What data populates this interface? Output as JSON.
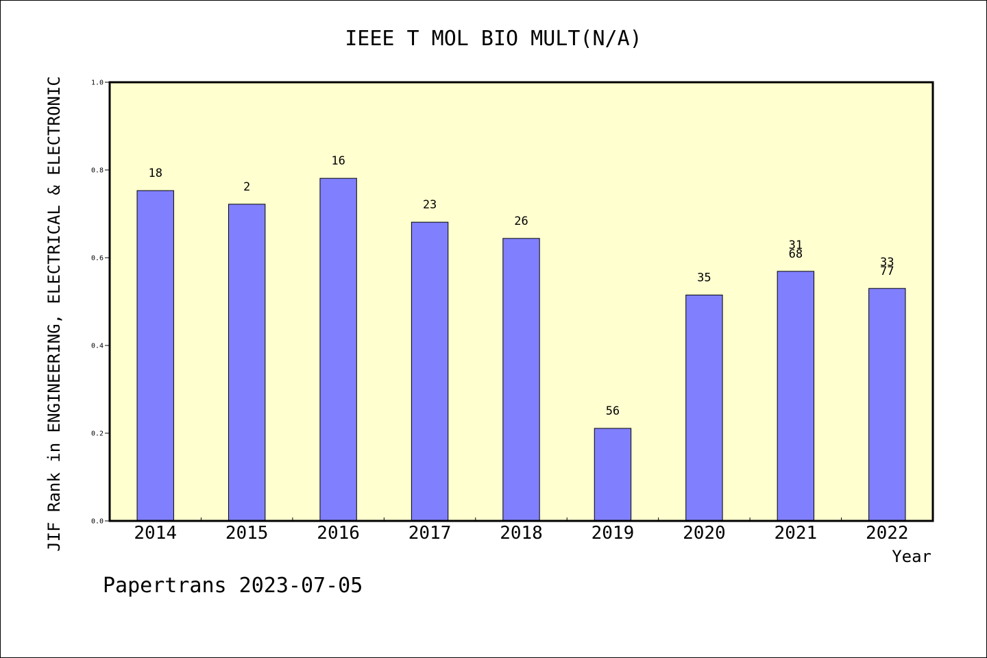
{
  "chart_data": {
    "type": "bar",
    "title": "IEEE T MOL BIO MULT(N/A)",
    "xlabel": "Year",
    "ylabel": "JIF Rank in ENGINEERING, ELECTRICAL & ELECTRONIC",
    "ylim": [
      0,
      1.0
    ],
    "yticks": [
      "0.0",
      "0.2",
      "0.4",
      "0.6",
      "0.8",
      "1.0"
    ],
    "categories": [
      "2014",
      "2015",
      "2016",
      "2017",
      "2018",
      "2019",
      "2020",
      "2021",
      "2022"
    ],
    "values": [
      0.753,
      0.722,
      0.781,
      0.681,
      0.644,
      0.211,
      0.515,
      0.569,
      0.53
    ],
    "bar_labels": [
      [
        "18"
      ],
      [
        "2"
      ],
      [
        "16"
      ],
      [
        "23"
      ],
      [
        "26"
      ],
      [
        "56"
      ],
      [
        "35"
      ],
      [
        "31",
        "68"
      ],
      [
        "33",
        "77"
      ]
    ],
    "colors": {
      "bar": "#8080ff",
      "plot_background": "#ffffd0",
      "frame": "#000000"
    },
    "grid": false,
    "legend": "none"
  },
  "footer": {
    "text": "Papertrans 2023-07-05"
  }
}
